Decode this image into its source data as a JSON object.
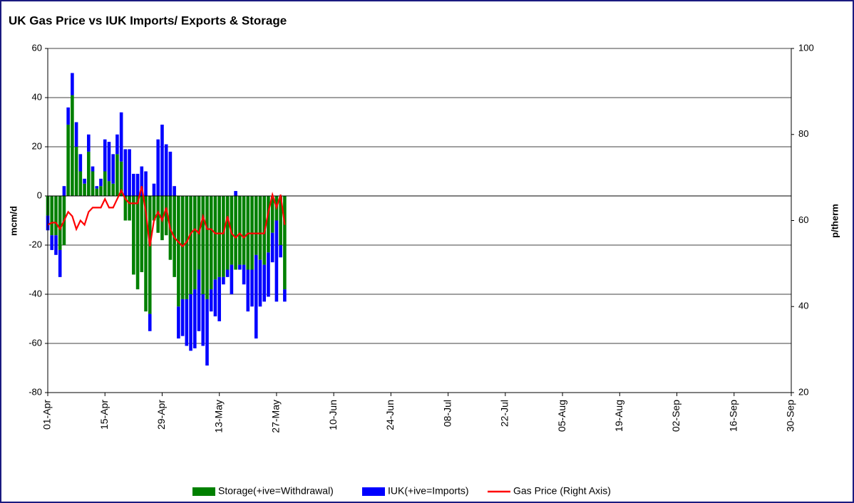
{
  "chart_data": {
    "type": "bar-line",
    "title": "UK Gas Price vs IUK Imports/ Exports & Storage",
    "y_label": "mcm/d",
    "y2_label": "p/therm",
    "categories": [
      "01-Apr",
      null,
      null,
      null,
      null,
      null,
      null,
      null,
      null,
      null,
      null,
      null,
      null,
      null,
      "15-Apr",
      null,
      null,
      null,
      null,
      null,
      null,
      null,
      null,
      null,
      null,
      null,
      null,
      null,
      "29-Apr",
      null,
      null,
      null,
      null,
      null,
      null,
      null,
      null,
      null,
      null,
      null,
      null,
      null,
      "13-May",
      null,
      null,
      null,
      null,
      null,
      null,
      null,
      null,
      null,
      null,
      null,
      null,
      null,
      "27-May",
      null,
      null,
      null,
      null,
      null,
      null,
      null,
      null,
      null,
      null,
      null,
      null,
      null,
      "10-Jun",
      null,
      null,
      null,
      null,
      null,
      null,
      null,
      null,
      null,
      null,
      null,
      null,
      null,
      "24-Jun",
      null,
      null,
      null,
      null,
      null,
      null,
      null,
      null,
      null,
      null,
      null,
      null,
      null,
      "08-Jul",
      null,
      null,
      null,
      null,
      null,
      null,
      null,
      null,
      null,
      null,
      null,
      null,
      null,
      "22-Jul",
      null,
      null,
      null,
      null,
      null,
      null,
      null,
      null,
      null,
      null,
      null,
      null,
      null,
      "05-Aug",
      null,
      null,
      null,
      null,
      null,
      null,
      null,
      null,
      null,
      null,
      null,
      null,
      null,
      "19-Aug",
      null,
      null,
      null,
      null,
      null,
      null,
      null,
      null,
      null,
      null,
      null,
      null,
      null,
      "02-Sep",
      null,
      null,
      null,
      null,
      null,
      null,
      null,
      null,
      null,
      null,
      null,
      null,
      null,
      "16-Sep",
      null,
      null,
      null,
      null,
      null,
      null,
      null,
      null,
      null,
      null,
      null,
      null,
      null,
      "30-Sep"
    ],
    "series": [
      {
        "name": "Storage(+ive=Withdrawal)",
        "type": "bar",
        "color": "#008000",
        "values": [
          -8,
          -16,
          -16,
          -22,
          -20,
          29,
          41,
          20,
          10,
          5,
          18,
          10,
          3,
          4,
          10,
          6,
          5,
          17,
          14,
          -10,
          -10,
          -32,
          -38,
          -31,
          -47,
          -48,
          -10,
          -15,
          -18,
          -16,
          -26,
          -33,
          -45,
          -42,
          -42,
          -40,
          -38,
          -30,
          -40,
          -42,
          -38,
          -34,
          -33,
          -33,
          -30,
          -28,
          -30,
          -28,
          -28,
          -30,
          -30,
          -24,
          -26,
          -28,
          -23,
          -15,
          -10,
          -20,
          -38,
          null,
          null,
          null,
          null,
          null,
          null,
          null,
          null,
          null,
          null,
          null,
          null,
          null,
          null,
          null,
          null,
          null,
          null,
          null,
          null,
          null,
          null,
          null,
          null,
          null,
          null,
          null,
          null,
          null,
          null,
          null,
          null,
          null,
          null,
          null,
          null,
          null,
          null,
          null,
          null,
          null,
          null,
          null,
          null,
          null,
          null,
          null,
          null,
          null,
          null,
          null,
          null,
          null,
          null,
          null,
          null,
          null,
          null,
          null,
          null,
          null,
          null,
          null,
          null,
          null,
          null,
          null,
          null,
          null,
          null,
          null,
          null,
          null,
          null,
          null,
          null,
          null,
          null,
          null,
          null,
          null,
          null,
          null,
          null,
          null,
          null,
          null,
          null,
          null,
          null,
          null,
          null,
          null,
          null,
          null,
          null,
          null,
          null,
          null,
          null,
          null,
          null,
          null,
          null,
          null,
          null,
          null,
          null,
          null,
          null,
          null,
          null,
          null,
          null,
          null,
          null,
          null,
          null,
          null,
          null,
          null,
          null,
          null,
          null
        ]
      },
      {
        "name": "IUK(+ive=Imports)",
        "type": "bar",
        "color": "#0000ff",
        "values": [
          -6,
          -6,
          -8,
          -11,
          4,
          7,
          9,
          10,
          7,
          2,
          7,
          2,
          1,
          3,
          13,
          16,
          12,
          8,
          20,
          19,
          19,
          9,
          9,
          12,
          10,
          -7,
          5,
          23,
          29,
          21,
          18,
          4,
          -13,
          -15,
          -19,
          -23,
          -24,
          -25,
          -21,
          -27,
          -9,
          -15,
          -18,
          -3,
          -3,
          -12,
          2,
          -2,
          -8,
          -17,
          -15,
          -34,
          -19,
          -15,
          -18,
          -12,
          -33,
          -5,
          -5,
          null,
          null,
          null,
          null,
          null,
          null,
          null,
          null,
          null,
          null,
          null,
          null,
          null,
          null,
          null,
          null,
          null,
          null,
          null,
          null,
          null,
          null,
          null,
          null,
          null,
          null,
          null,
          null,
          null,
          null,
          null,
          null,
          null,
          null,
          null,
          null,
          null,
          null,
          null,
          null,
          null,
          null,
          null,
          null,
          null,
          null,
          null,
          null,
          null,
          null,
          null,
          null,
          null,
          null,
          null,
          null,
          null,
          null,
          null,
          null,
          null,
          null,
          null,
          null,
          null,
          null,
          null,
          null,
          null,
          null,
          null,
          null,
          null,
          null,
          null,
          null,
          null,
          null,
          null,
          null,
          null,
          null,
          null,
          null,
          null,
          null,
          null,
          null,
          null,
          null,
          null,
          null,
          null,
          null,
          null,
          null,
          null,
          null,
          null,
          null,
          null,
          null,
          null,
          null,
          null,
          null,
          null,
          null,
          null,
          null,
          null,
          null,
          null,
          null,
          null,
          null,
          null,
          null,
          null,
          null,
          null,
          null,
          null,
          null
        ]
      },
      {
        "name": "Gas Price (Right Axis)",
        "type": "line",
        "axis": "y2",
        "color": "#ff0000",
        "values": [
          59,
          59.5,
          59.5,
          58,
          60,
          62,
          61,
          58,
          60,
          59,
          62,
          63,
          63,
          63,
          65,
          63,
          63,
          65,
          67,
          65,
          64,
          64,
          64,
          68,
          62,
          54,
          60,
          62,
          60,
          63,
          58,
          56,
          55,
          54,
          55,
          57,
          58,
          57,
          61,
          58,
          58,
          57,
          57,
          57,
          61,
          57,
          56,
          57,
          56,
          57,
          57,
          57,
          57,
          57,
          62,
          66,
          63,
          66,
          59,
          null,
          null,
          null,
          null,
          null,
          null,
          null,
          null,
          null,
          null,
          null,
          null,
          null,
          null,
          null,
          null,
          null,
          null,
          null,
          null,
          null,
          null,
          null,
          null,
          null,
          null,
          null,
          null,
          null,
          null,
          null,
          null,
          null,
          null,
          null,
          null,
          null,
          null,
          null,
          null,
          null,
          null,
          null,
          null,
          null,
          null,
          null,
          null,
          null,
          null,
          null,
          null,
          null,
          null,
          null,
          null,
          null,
          null,
          null,
          null,
          null,
          null,
          null,
          null,
          null,
          null,
          null,
          null,
          null,
          null,
          null,
          null,
          null,
          null,
          null,
          null,
          null,
          null,
          null,
          null,
          null,
          null,
          null,
          null,
          null,
          null,
          null,
          null,
          null,
          null,
          null,
          null,
          null,
          null,
          null,
          null,
          null,
          null,
          null,
          null,
          null,
          null,
          null,
          null,
          null,
          null,
          null,
          null,
          null,
          null,
          null,
          null,
          null,
          null,
          null,
          null,
          null,
          null,
          null,
          null,
          null,
          null,
          null,
          null
        ]
      }
    ],
    "ylim": [
      -80,
      60
    ],
    "yticks": [
      -80,
      -60,
      -40,
      -20,
      0,
      20,
      40,
      60
    ],
    "y2lim": [
      20,
      100
    ],
    "y2ticks": [
      20,
      40,
      60,
      80,
      100
    ],
    "grid": true,
    "legend": "bottom"
  }
}
